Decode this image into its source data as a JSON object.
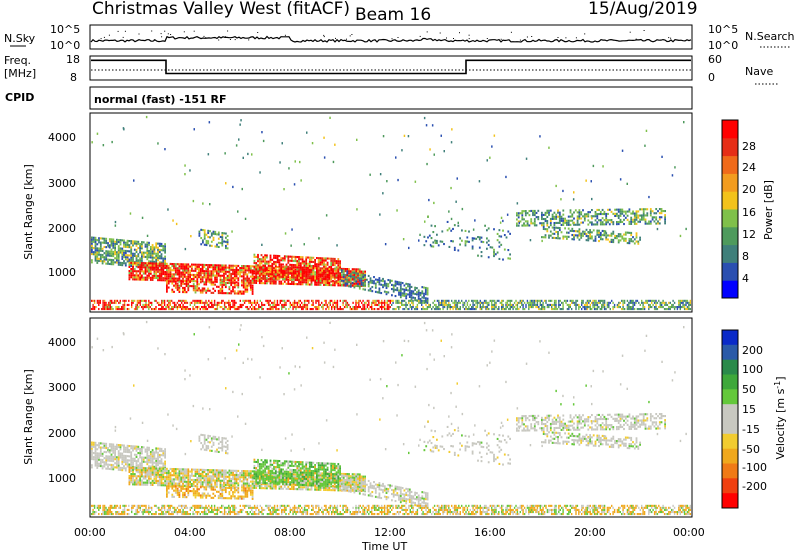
{
  "header": {
    "title": "Christmas Valley West (fitACF)",
    "beam": "Beam 16",
    "date": "15/Aug/2019"
  },
  "top_panels": {
    "nsky_label": "N.Sky",
    "nsky_ticks": [
      "10^5",
      "10^0"
    ],
    "nsearch_label": "N.Search",
    "nsearch_ticks": [
      "10^5",
      "10^0"
    ],
    "freq_label_1": "Freq.",
    "freq_label_2": "[MHz]",
    "freq_ticks": [
      "18",
      "8"
    ],
    "nave_label": "Nave",
    "nave_ticks": [
      "60",
      "0"
    ],
    "cpid_label": "CPID",
    "cpid_value": "normal (fast) -151 RF"
  },
  "power_panel": {
    "ylabel": "Slant Range [km]",
    "yticks": [
      "4000",
      "3000",
      "2000",
      "1000"
    ],
    "colorbar_label": "Power [dB]",
    "colorbar_ticks": [
      "28",
      "24",
      "20",
      "16",
      "12",
      "8",
      "4"
    ],
    "colors": [
      "#0000ff",
      "#2a4fb0",
      "#3f7f7a",
      "#4e9a5c",
      "#7fc04a",
      "#f2c21b",
      "#f39c1f",
      "#f06a1a",
      "#e62e17",
      "#ff0000"
    ]
  },
  "velocity_panel": {
    "ylabel": "Slant Range [km]",
    "yticks": [
      "4000",
      "3000",
      "2000",
      "1000"
    ],
    "colorbar_label": "Velocity [m s",
    "colorbar_label_sup": "-1",
    "colorbar_label_end": "]",
    "colorbar_ticks": [
      "200",
      "100",
      "50",
      "15",
      "-15",
      "-50",
      "-100",
      "-200"
    ],
    "colors": [
      "#ff0000",
      "#f04010",
      "#f07a16",
      "#f0a81c",
      "#f2cc30",
      "#c8c8c0",
      "#c8c8c0",
      "#64c83a",
      "#3ea83a",
      "#2a8a4a",
      "#2a5aa8",
      "#0a2ac8"
    ]
  },
  "xaxis": {
    "label": "Time UT",
    "ticks": [
      "00:00",
      "04:00",
      "08:00",
      "12:00",
      "16:00",
      "20:00",
      "00:00"
    ]
  },
  "chart_data": [
    {
      "type": "line",
      "name": "Freq.",
      "ylabel": "[MHz]",
      "ylim": [
        8,
        18
      ],
      "x": [
        "00:00",
        "03:00",
        "03:00",
        "15:00",
        "15:00",
        "24:00"
      ],
      "y": [
        16.5,
        16.5,
        10.5,
        10.5,
        16.5,
        16.5
      ]
    },
    {
      "type": "heatmap",
      "title": "Power [dB]",
      "xlabel": "Time UT",
      "ylabel": "Slant Range [km]",
      "xlim": [
        "00:00",
        "24:00"
      ],
      "ylim": [
        180,
        4500
      ],
      "clim": [
        0,
        30
      ]
    },
    {
      "type": "heatmap",
      "title": "Velocity",
      "xlabel": "Time UT",
      "ylabel": "Slant Range [km]",
      "xlim": [
        "00:00",
        "24:00"
      ],
      "ylim": [
        180,
        4500
      ],
      "clim": [
        -250,
        250
      ]
    }
  ]
}
